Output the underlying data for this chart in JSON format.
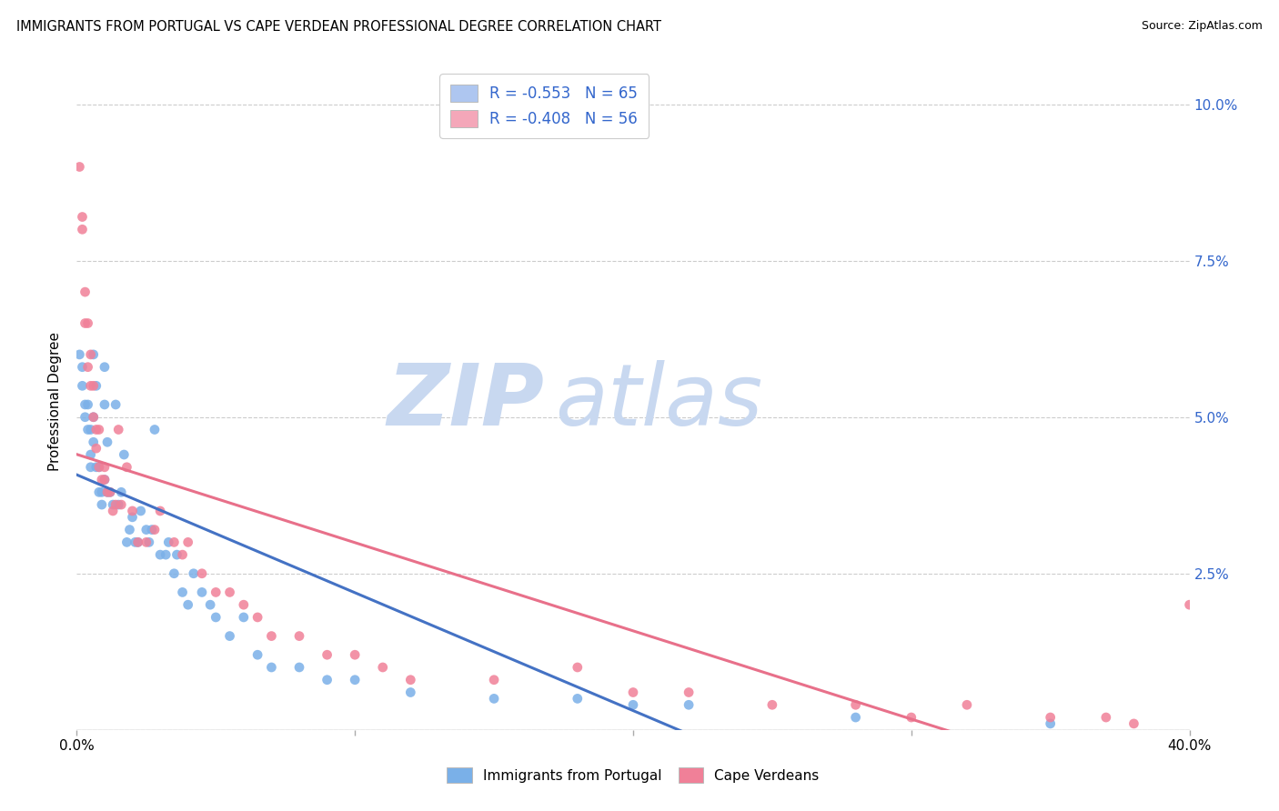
{
  "title": "IMMIGRANTS FROM PORTUGAL VS CAPE VERDEAN PROFESSIONAL DEGREE CORRELATION CHART",
  "source": "Source: ZipAtlas.com",
  "ylabel_label": "Professional Degree",
  "xlim": [
    0.0,
    0.4
  ],
  "ylim": [
    0.0,
    0.105
  ],
  "legend_entries": [
    {
      "color": "#aec6f0",
      "label": "R = -0.553   N = 65"
    },
    {
      "color": "#f4a7b9",
      "label": "R = -0.408   N = 56"
    }
  ],
  "series1_color": "#7ab0e8",
  "series2_color": "#f08098",
  "line1_color": "#4472c4",
  "line2_color": "#e8708a",
  "watermark_color": "#c8d8f0",
  "legend_text_color": "#3366cc",
  "background_color": "#ffffff",
  "grid_color": "#cccccc",
  "series1_x": [
    0.001,
    0.002,
    0.002,
    0.003,
    0.003,
    0.004,
    0.004,
    0.005,
    0.005,
    0.005,
    0.006,
    0.006,
    0.006,
    0.007,
    0.007,
    0.008,
    0.008,
    0.009,
    0.009,
    0.01,
    0.01,
    0.01,
    0.011,
    0.011,
    0.012,
    0.013,
    0.014,
    0.015,
    0.016,
    0.017,
    0.018,
    0.019,
    0.02,
    0.021,
    0.022,
    0.023,
    0.025,
    0.026,
    0.027,
    0.028,
    0.03,
    0.032,
    0.033,
    0.035,
    0.036,
    0.038,
    0.04,
    0.042,
    0.045,
    0.048,
    0.05,
    0.055,
    0.06,
    0.065,
    0.07,
    0.08,
    0.09,
    0.1,
    0.12,
    0.15,
    0.18,
    0.2,
    0.22,
    0.28,
    0.35
  ],
  "series1_y": [
    0.06,
    0.058,
    0.055,
    0.052,
    0.05,
    0.052,
    0.048,
    0.048,
    0.044,
    0.042,
    0.05,
    0.046,
    0.06,
    0.042,
    0.055,
    0.038,
    0.042,
    0.038,
    0.036,
    0.04,
    0.052,
    0.058,
    0.046,
    0.038,
    0.038,
    0.036,
    0.052,
    0.036,
    0.038,
    0.044,
    0.03,
    0.032,
    0.034,
    0.03,
    0.03,
    0.035,
    0.032,
    0.03,
    0.032,
    0.048,
    0.028,
    0.028,
    0.03,
    0.025,
    0.028,
    0.022,
    0.02,
    0.025,
    0.022,
    0.02,
    0.018,
    0.015,
    0.018,
    0.012,
    0.01,
    0.01,
    0.008,
    0.008,
    0.006,
    0.005,
    0.005,
    0.004,
    0.004,
    0.002,
    0.001
  ],
  "series2_x": [
    0.001,
    0.002,
    0.002,
    0.003,
    0.003,
    0.004,
    0.004,
    0.005,
    0.005,
    0.006,
    0.006,
    0.007,
    0.007,
    0.008,
    0.008,
    0.009,
    0.01,
    0.01,
    0.011,
    0.012,
    0.013,
    0.014,
    0.015,
    0.016,
    0.018,
    0.02,
    0.022,
    0.025,
    0.028,
    0.03,
    0.035,
    0.038,
    0.04,
    0.045,
    0.05,
    0.055,
    0.06,
    0.065,
    0.07,
    0.08,
    0.09,
    0.1,
    0.11,
    0.12,
    0.15,
    0.18,
    0.2,
    0.22,
    0.25,
    0.28,
    0.3,
    0.32,
    0.35,
    0.37,
    0.38,
    0.4
  ],
  "series2_y": [
    0.09,
    0.08,
    0.082,
    0.07,
    0.065,
    0.065,
    0.058,
    0.06,
    0.055,
    0.055,
    0.05,
    0.048,
    0.045,
    0.048,
    0.042,
    0.04,
    0.042,
    0.04,
    0.038,
    0.038,
    0.035,
    0.036,
    0.048,
    0.036,
    0.042,
    0.035,
    0.03,
    0.03,
    0.032,
    0.035,
    0.03,
    0.028,
    0.03,
    0.025,
    0.022,
    0.022,
    0.02,
    0.018,
    0.015,
    0.015,
    0.012,
    0.012,
    0.01,
    0.008,
    0.008,
    0.01,
    0.006,
    0.006,
    0.004,
    0.004,
    0.002,
    0.004,
    0.002,
    0.002,
    0.001,
    0.02
  ]
}
